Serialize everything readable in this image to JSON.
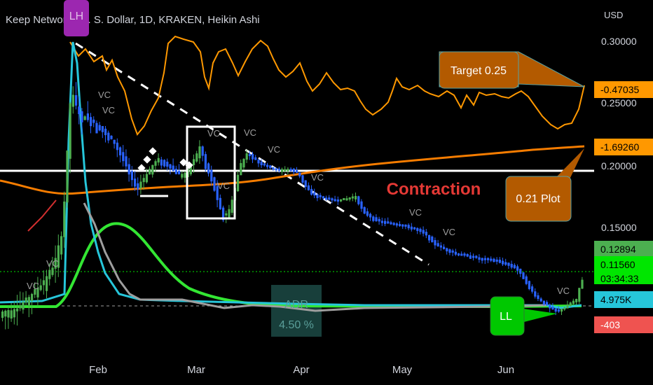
{
  "header": {
    "title": "Keep Network / U. S. Dollar, 1D, KRAKEN, Heikin Ashi",
    "currency": "USD"
  },
  "chart_data": {
    "type": "candlestick",
    "x_ticks": [
      "Feb",
      "Mar",
      "Apr",
      "May",
      "Jun"
    ],
    "y_ticks": [
      "0.30000",
      "0.25000",
      "0.20000",
      "0.15000"
    ],
    "price_tags": [
      {
        "text": "-0.47035",
        "color": "#ff9800"
      },
      {
        "text": "-1.69260",
        "color": "#ff9800"
      },
      {
        "text": "0.12894",
        "color": "#4caf50"
      },
      {
        "text": "0.11560",
        "color": "#00e600"
      },
      {
        "text": "03:34:33",
        "color": "#00e600"
      },
      {
        "text": "4.975K",
        "color": "#26c6da"
      },
      {
        "text": "-403",
        "color": "#ef5350"
      }
    ],
    "annotations": {
      "lh": "LH",
      "ll": "LL",
      "target": "Target 0.25",
      "plot": "0.21 Plot",
      "contraction": "Contraction",
      "adr_label": "ADR",
      "adr_value": "4.50 %",
      "vc": "VC"
    },
    "lines": [
      {
        "name": "upper-oscillator",
        "color": "#ff9800"
      },
      {
        "name": "moving-average",
        "color": "#f57c00"
      },
      {
        "name": "bell-curve",
        "color": "#33e633"
      },
      {
        "name": "volume-line",
        "color": "#26c6da"
      },
      {
        "name": "secondary-line",
        "color": "#9e9e9e"
      }
    ],
    "colors": {
      "background": "#000000",
      "up": "#4caf50",
      "down": "#2962ff",
      "text": "#d1d4dc"
    }
  }
}
